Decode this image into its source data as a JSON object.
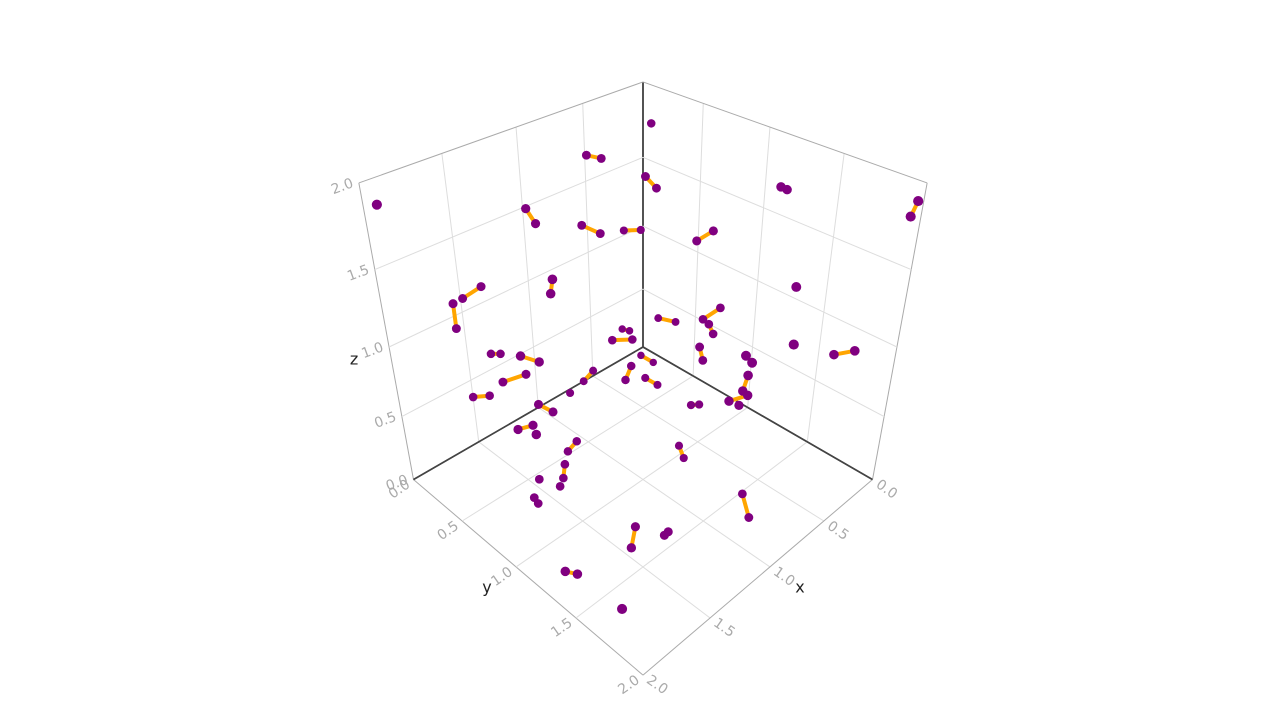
{
  "chart_data": {
    "type": "scatter3d",
    "mode": "lines+markers",
    "line_color": "#ffa500",
    "marker_color": "#800080",
    "x_title": "x",
    "y_title": "y",
    "z_title": "z",
    "xlim": [
      0,
      2
    ],
    "ylim": [
      0,
      2
    ],
    "zlim": [
      0,
      2
    ],
    "xticks": [
      {
        "value": 0,
        "label": "0.0"
      },
      {
        "value": 0.5,
        "label": "0.5"
      },
      {
        "value": 1,
        "label": "1.0"
      },
      {
        "value": 1.5,
        "label": "1.5"
      },
      {
        "value": 2,
        "label": "2.0"
      }
    ],
    "yticks": [
      {
        "value": 0,
        "label": "0.0"
      },
      {
        "value": 0.5,
        "label": "0.5"
      },
      {
        "value": 1,
        "label": "1.0"
      },
      {
        "value": 1.5,
        "label": "1.5"
      },
      {
        "value": 2,
        "label": "2.0"
      }
    ],
    "zticks": [
      {
        "value": 0,
        "label": "0.0"
      },
      {
        "value": 0.5,
        "label": "0.5"
      },
      {
        "value": 1,
        "label": "1.0"
      },
      {
        "value": 1.5,
        "label": "1.5"
      },
      {
        "value": 2,
        "label": "2.0"
      }
    ],
    "grid": true,
    "x": [
      0.17,
      null,
      0.68,
      0.62,
      null,
      1.95,
      null,
      0.49,
      0.45,
      null,
      1.16,
      1.13,
      null,
      0.85,
      0.78,
      null,
      0.39,
      0.31,
      null,
      0.23,
      0.2,
      null,
      0.02,
      0.05,
      null,
      0.49,
      0.42,
      null,
      1.45,
      1.53,
      null,
      1.61,
      1.61,
      null,
      1.34,
      1.35,
      null,
      0.54,
      null,
      0.33,
      0.25,
      null,
      0.5,
      0.43,
      null,
      0.48,
      0.46,
      null,
      0.35,
      0.32,
      null,
      0.88,
      0.8,
      null,
      0.77,
      null,
      0.43,
      0.36,
      null,
      1.44,
      1.4,
      null,
      1.57,
      1.5,
      null,
      0.67,
      0.66,
      null,
      0.88,
      0.85,
      null,
      0.31,
      0.25,
      null,
      1.57,
      1.47,
      null,
      1.62,
      1.55,
      null,
      0.83,
      0.87,
      null,
      0.85,
      0.88,
      null,
      0.64,
      0.59,
      null,
      1.52,
      1.46,
      null,
      1.03,
      null,
      0.81,
      0.82,
      null,
      0.8,
      0.87,
      null,
      0.78,
      null,
      0.59,
      0.56,
      null,
      1.69,
      1.63,
      null,
      1.71,
      null,
      1.28,
      1.32,
      null,
      1.43,
      1.44,
      null,
      1.58,
      null,
      0.69,
      0.72,
      null,
      1.5,
      null,
      1.65,
      1.64,
      null,
      0.79,
      0.87,
      null,
      1.43,
      1.55,
      null,
      1.32,
      1.3,
      null,
      1.9,
      1.85,
      null,
      1.9
    ],
    "y": [
      0.24,
      null,
      0.22,
      0.28,
      null,
      0.05,
      null,
      0.51,
      0.56,
      null,
      0.24,
      0.28,
      null,
      0.35,
      0.43,
      null,
      0.22,
      0.29,
      null,
      1.28,
      1.3,
      null,
      1.98,
      1.97,
      null,
      0.92,
      0.98,
      null,
      0.15,
      0.07,
      null,
      0.09,
      0.09,
      null,
      0.66,
      0.65,
      null,
      1.66,
      null,
      0.47,
      0.55,
      null,
      1.0,
      1.07,
      null,
      1.03,
      1.05,
      null,
      0.15,
      0.19,
      null,
      0.62,
      0.71,
      null,
      1.84,
      null,
      1.87,
      1.95,
      null,
      0.16,
      0.2,
      null,
      0.63,
      0.7,
      null,
      1.13,
      1.15,
      null,
      1.63,
      1.65,
      null,
      0.29,
      0.35,
      null,
      0.44,
      0.53,
      null,
      0.19,
      0.26,
      null,
      0.38,
      0.33,
      null,
      0.75,
      0.73,
      null,
      0.66,
      0.72,
      null,
      0.69,
      0.74,
      null,
      0.38,
      null,
      1.6,
      1.58,
      null,
      1.6,
      1.53,
      null,
      1.53,
      null,
      1.01,
      1.05,
      null,
      0.71,
      0.77,
      null,
      0.9,
      null,
      0.72,
      0.68,
      null,
      0.78,
      0.77,
      null,
      0.72,
      null,
      1.01,
      1.08,
      null,
      0.81,
      null,
      0.75,
      0.77,
      null,
      1.61,
      1.73,
      null,
      1.37,
      1.46,
      null,
      1.49,
      1.5,
      null,
      1.31,
      1.35,
      null,
      1.75
    ],
    "z": [
      1.85,
      null,
      1.8,
      1.78,
      null,
      1.88,
      null,
      1.7,
      1.63,
      null,
      1.64,
      1.55,
      null,
      1.46,
      1.41,
      null,
      1.2,
      1.2,
      null,
      1.81,
      1.79,
      null,
      1.9,
      1.82,
      null,
      1.44,
      1.5,
      null,
      1.22,
      1.14,
      null,
      1.15,
      0.98,
      null,
      1.44,
      1.35,
      null,
      1.48,
      null,
      0.63,
      0.6,
      null,
      0.95,
      1.03,
      null,
      0.92,
      0.85,
      null,
      0.4,
      0.39,
      null,
      0.8,
      0.81,
      null,
      1.32,
      null,
      1.1,
      1.13,
      null,
      0.75,
      0.75,
      null,
      1.04,
      1.0,
      null,
      0.9,
      0.81,
      null,
      1.2,
      1.15,
      null,
      0.23,
      0.17,
      null,
      0.76,
      0.81,
      null,
      0.54,
      0.55,
      null,
      0.42,
      0.33,
      null,
      0.66,
      0.56,
      null,
      0.41,
      0.36,
      null,
      0.71,
      0.65,
      null,
      0.35,
      null,
      1.02,
      0.91,
      null,
      0.88,
      0.84,
      null,
      0.76,
      null,
      0.36,
      0.37,
      null,
      0.64,
      0.67,
      null,
      0.73,
      null,
      0.31,
      0.23,
      null,
      0.26,
      0.15,
      null,
      0.2,
      null,
      0.09,
      0.05,
      null,
      0.15,
      null,
      0.12,
      0.08,
      null,
      0.15,
      0.1,
      null,
      0.17,
      0.16,
      null,
      0.11,
      0.13,
      null,
      0.13,
      0.1,
      null,
      0.2
    ]
  }
}
